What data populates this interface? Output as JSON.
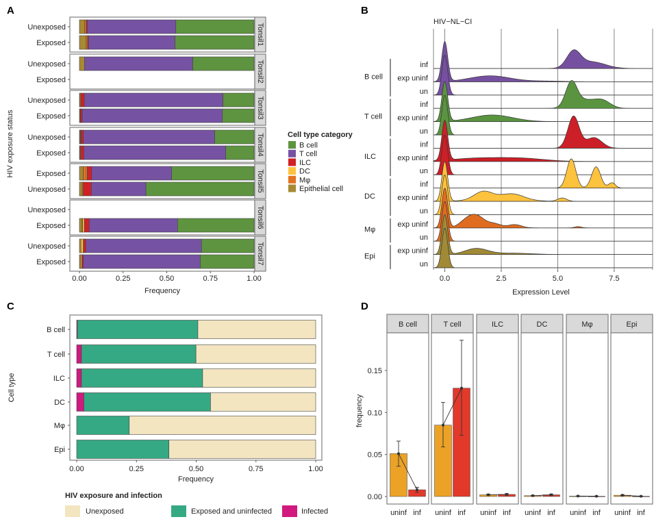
{
  "panel_labels": [
    "A",
    "B",
    "C",
    "D"
  ],
  "chart_data": [
    {
      "panel": "A",
      "type": "bar",
      "orientation": "horizontal",
      "stacked": true,
      "xlabel": "Frequency",
      "ylabel": "HIV exposure status",
      "xlim": [
        0,
        1
      ],
      "xticks": [
        "0.00",
        "0.25",
        "0.50",
        "0.75",
        "1.00"
      ],
      "stack_order": [
        "Epithelial cell",
        "Mφ",
        "DC",
        "ILC",
        "T cell",
        "B cell"
      ],
      "legend": {
        "title": "Cell type category",
        "placement": "right",
        "entries": [
          {
            "label": "B cell",
            "color": "#5e9440"
          },
          {
            "label": "T cell",
            "color": "#7652a3"
          },
          {
            "label": "ILC",
            "color": "#d02127"
          },
          {
            "label": "DC",
            "color": "#fdc33e"
          },
          {
            "label": "Mφ",
            "color": "#e2731f"
          },
          {
            "label": "Epithelial cell",
            "color": "#a88a33"
          }
        ]
      },
      "facets": [
        {
          "name": "Tonsil1",
          "rows": [
            {
              "label": "Unexposed",
              "values": {
                "Epithelial cell": 0.029,
                "Mφ": 0.01,
                "DC": 0,
                "ILC": 0.006,
                "T cell": 0.507,
                "B cell": 0.448
              }
            },
            {
              "label": "Exposed",
              "values": {
                "Epithelial cell": 0.039,
                "Mφ": 0.008,
                "DC": 0,
                "ILC": 0.005,
                "T cell": 0.496,
                "B cell": 0.452
              }
            }
          ]
        },
        {
          "name": "Tonsil2",
          "rows": [
            {
              "label": "Unexposed",
              "values": {
                "Epithelial cell": 0.029,
                "Mφ": 0,
                "DC": 0,
                "ILC": 0,
                "T cell": 0.62,
                "B cell": 0.351
              }
            },
            {
              "label": "Exposed",
              "values": null
            }
          ]
        },
        {
          "name": "Tonsil3",
          "rows": [
            {
              "label": "Unexposed",
              "values": {
                "Epithelial cell": 0.004,
                "Mφ": 0.005,
                "DC": 0,
                "ILC": 0.019,
                "T cell": 0.794,
                "B cell": 0.178
              }
            },
            {
              "label": "Exposed",
              "values": {
                "Epithelial cell": 0.004,
                "Mφ": 0.002,
                "DC": 0,
                "ILC": 0.01,
                "T cell": 0.803,
                "B cell": 0.181
              }
            }
          ]
        },
        {
          "name": "Tonsil4",
          "rows": [
            {
              "label": "Unexposed",
              "values": {
                "Epithelial cell": 0.004,
                "Mφ": 0.004,
                "DC": 0.002,
                "ILC": 0.013,
                "T cell": 0.752,
                "B cell": 0.225
              }
            },
            {
              "label": "Exposed",
              "values": {
                "Epithelial cell": 0.004,
                "Mφ": 0.004,
                "DC": 0,
                "ILC": 0.017,
                "T cell": 0.813,
                "B cell": 0.162
              }
            }
          ]
        },
        {
          "name": "Tonsil5",
          "rows": [
            {
              "label": "Exposed",
              "values": {
                "Epithelial cell": 0.022,
                "Mφ": 0.017,
                "DC": 0.005,
                "ILC": 0.026,
                "T cell": 0.458,
                "B cell": 0.472
              }
            },
            {
              "label": "Unexposed",
              "values": {
                "Epithelial cell": 0.016,
                "Mφ": 0.006,
                "DC": 0,
                "ILC": 0.046,
                "T cell": 0.313,
                "B cell": 0.619
              }
            }
          ]
        },
        {
          "name": "Tonsil6",
          "rows": [
            {
              "label": "Unexposed",
              "values": null
            },
            {
              "label": "Exposed",
              "values": {
                "Epithelial cell": 0.015,
                "Mφ": 0.003,
                "DC": 0.01,
                "ILC": 0.028,
                "T cell": 0.506,
                "B cell": 0.438
              }
            }
          ]
        },
        {
          "name": "Tonsil7",
          "rows": [
            {
              "label": "Unexposed",
              "values": {
                "Epithelial cell": 0.009,
                "Mφ": 0,
                "DC": 0.013,
                "ILC": 0.014,
                "T cell": 0.663,
                "B cell": 0.301
              }
            },
            {
              "label": "Exposed",
              "values": {
                "Epithelial cell": 0.006,
                "Mφ": 0,
                "DC": 0.007,
                "ILC": 0.009,
                "T cell": 0.67,
                "B cell": 0.308
              }
            }
          ]
        }
      ]
    },
    {
      "panel": "B",
      "type": "area",
      "subtype": "ridgeline density",
      "title": "HIV−NL−CI",
      "xlabel": "Expression Level",
      "xlim": [
        -0.5,
        9.2
      ],
      "xticks": [
        0.0,
        2.5,
        5.0,
        7.5
      ],
      "xtick_labels": [
        "0.0",
        "2.5",
        "5.0",
        "7.5"
      ],
      "grid": true,
      "groups": [
        {
          "label": "B cell",
          "color": "#7650a0",
          "rows": [
            {
              "label": "inf",
              "components": [
                [
                  5.7,
                  0.3,
                  1.2
                ],
                [
                  6.5,
                  0.6,
                  0.5
                ]
              ]
            },
            {
              "label": "exp uninf",
              "components": [
                [
                  0,
                  0.13,
                  3.0
                ],
                [
                  2.0,
                  0.9,
                  0.45
                ],
                [
                  4.5,
                  0.8,
                  0.05
                ]
              ]
            },
            {
              "label": "un",
              "components": [
                [
                  0,
                  0.13,
                  3.0
                ]
              ]
            }
          ]
        },
        {
          "label": "T cell",
          "color": "#5a9440",
          "rows": [
            {
              "label": "inf",
              "components": [
                [
                  5.6,
                  0.25,
                  1.8
                ],
                [
                  6.2,
                  0.5,
                  0.6
                ],
                [
                  7.0,
                  0.35,
                  0.5
                ]
              ]
            },
            {
              "label": "exp uninf",
              "components": [
                [
                  0,
                  0.13,
                  3.0
                ],
                [
                  2.1,
                  0.9,
                  0.5
                ]
              ]
            },
            {
              "label": "un",
              "components": [
                [
                  0,
                  0.13,
                  3.0
                ]
              ]
            }
          ]
        },
        {
          "label": "ILC",
          "color": "#cc1f27",
          "rows": [
            {
              "label": "inf",
              "components": [
                [
                  5.7,
                  0.25,
                  2.4
                ],
                [
                  6.6,
                  0.35,
                  0.8
                ]
              ]
            },
            {
              "label": "exp uninf",
              "components": [
                [
                  0,
                  0.13,
                  3.0
                ],
                [
                  1.5,
                  1.2,
                  0.25
                ],
                [
                  3.5,
                  1.0,
                  0.2
                ]
              ]
            },
            {
              "label": "un",
              "components": [
                [
                  0,
                  0.13,
                  3.0
                ]
              ]
            }
          ]
        },
        {
          "label": "DC",
          "color": "#fdc23e",
          "rows": [
            {
              "label": "inf",
              "components": [
                [
                  5.6,
                  0.2,
                  2.2
                ],
                [
                  6.7,
                  0.2,
                  1.6
                ],
                [
                  7.4,
                  0.15,
                  0.4
                ]
              ]
            },
            {
              "label": "exp uninf",
              "components": [
                [
                  0,
                  0.13,
                  3.0
                ],
                [
                  1.7,
                  0.4,
                  0.6
                ],
                [
                  3.0,
                  0.5,
                  0.4
                ],
                [
                  5.2,
                  0.2,
                  0.25
                ],
                [
                  2.4,
                  1.0,
                  0.2
                ]
              ]
            },
            {
              "label": "un",
              "components": [
                [
                  0,
                  0.13,
                  3.0
                ]
              ]
            }
          ]
        },
        {
          "label": "Mφ",
          "color": "#e06c1f",
          "rows": [
            {
              "label": "exp uninf",
              "components": [
                [
                  0,
                  0.13,
                  3.0
                ],
                [
                  1.4,
                  0.35,
                  0.9
                ],
                [
                  0.9,
                  0.3,
                  0.4
                ],
                [
                  2.2,
                  0.3,
                  0.3
                ],
                [
                  3.1,
                  0.3,
                  0.25
                ],
                [
                  5.9,
                  0.15,
                  0.1
                ]
              ]
            },
            {
              "label": "un",
              "components": [
                [
                  0,
                  0.13,
                  3.0
                ]
              ]
            }
          ]
        },
        {
          "label": "Epi",
          "color": "#a08a35",
          "rows": [
            {
              "label": "exp uninf",
              "components": [
                [
                  0,
                  0.13,
                  3.0
                ],
                [
                  1.4,
                  0.5,
                  0.45
                ],
                [
                  3.0,
                  0.8,
                  0.1
                ]
              ]
            },
            {
              "label": "un",
              "components": [
                [
                  0,
                  0.13,
                  3.0
                ]
              ]
            }
          ]
        }
      ]
    },
    {
      "panel": "C",
      "type": "bar",
      "orientation": "horizontal",
      "stacked": true,
      "xlabel": "Frequency",
      "ylabel": "Cell type",
      "xlim": [
        0,
        1
      ],
      "xticks": [
        "0.00",
        "0.25",
        "0.50",
        "0.75",
        "1.00"
      ],
      "categories": [
        "B cell",
        "T cell",
        "ILC",
        "DC",
        "Mφ",
        "Epi"
      ],
      "series": [
        {
          "name": "Infected",
          "color": "#d1197f",
          "values": [
            0.003,
            0.02,
            0.02,
            0.03,
            0,
            0
          ]
        },
        {
          "name": "Exposed and uninfected",
          "color": "#35a983",
          "values": [
            0.504,
            0.479,
            0.507,
            0.53,
            0.22,
            0.386
          ]
        },
        {
          "name": "Unexposed",
          "color": "#f3e5c0",
          "values": [
            0.493,
            0.501,
            0.473,
            0.44,
            0.78,
            0.614
          ]
        }
      ],
      "legend": {
        "title": "HIV exposure and infection",
        "placement": "bottom",
        "entries": [
          "Unexposed",
          "Exposed and uninfected",
          "Infected"
        ]
      }
    },
    {
      "panel": "D",
      "type": "bar",
      "ylabel": "frequency",
      "ylim": [
        0,
        0.19
      ],
      "yticks": [
        "0.00",
        "0.05",
        "0.10",
        "0.15"
      ],
      "categories": [
        "uninf",
        "inf"
      ],
      "colors": {
        "uninf": "#eba226",
        "inf": "#e2392b"
      },
      "facets": [
        {
          "name": "B cell",
          "values": [
            {
              "mean": 0.051,
              "lo": 0.036,
              "hi": 0.066
            },
            {
              "mean": 0.008,
              "lo": 0.005,
              "hi": 0.011
            }
          ]
        },
        {
          "name": "T cell",
          "values": [
            {
              "mean": 0.085,
              "lo": 0.059,
              "hi": 0.112
            },
            {
              "mean": 0.129,
              "lo": 0.073,
              "hi": 0.186
            }
          ]
        },
        {
          "name": "ILC",
          "values": [
            {
              "mean": 0.002,
              "lo": 0.0015,
              "hi": 0.0028
            },
            {
              "mean": 0.0025,
              "lo": 0.0015,
              "hi": 0.0035
            }
          ]
        },
        {
          "name": "DC",
          "values": [
            {
              "mean": 0.001,
              "lo": 0.0006,
              "hi": 0.0014
            },
            {
              "mean": 0.002,
              "lo": 0.001,
              "hi": 0.003
            }
          ]
        },
        {
          "name": "Mφ",
          "values": [
            {
              "mean": 0.0005,
              "lo": 0.0002,
              "hi": 0.0008
            },
            {
              "mean": 0.0003,
              "lo": 0.0,
              "hi": 0.0006
            }
          ]
        },
        {
          "name": "Epi",
          "values": [
            {
              "mean": 0.0015,
              "lo": 0.001,
              "hi": 0.002
            },
            {
              "mean": 0.0003,
              "lo": 0.0,
              "hi": 0.0006
            }
          ]
        }
      ]
    }
  ]
}
